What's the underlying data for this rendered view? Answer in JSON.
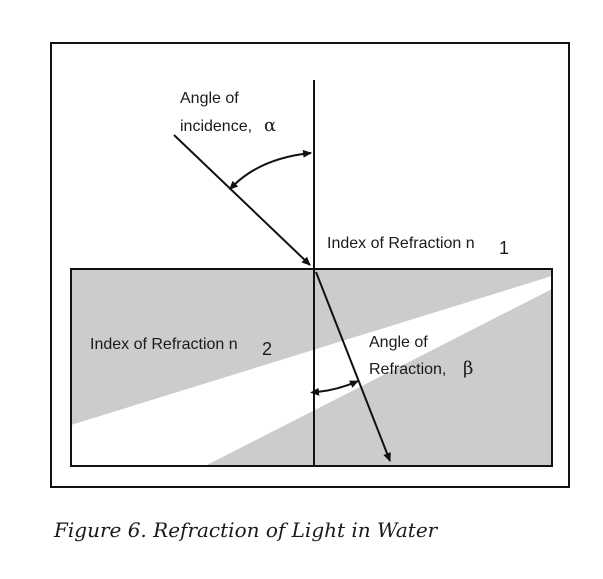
{
  "diagram": {
    "incidence_label": {
      "line1": "Angle of",
      "line2": "incidence,",
      "symbol": "α"
    },
    "n1_label": {
      "text": "Index of Refraction n",
      "subscript": "1"
    },
    "n2_label": {
      "text": "Index of Refraction n",
      "subscript": "2"
    },
    "refraction_label": {
      "line1": "Angle of",
      "line2": "Refraction,",
      "symbol": "β"
    },
    "colors": {
      "water": "#cccccc",
      "highlight": "#ffffff",
      "ink": "#111111"
    }
  },
  "caption": "Figure 6.  Refraction of Light in Water"
}
